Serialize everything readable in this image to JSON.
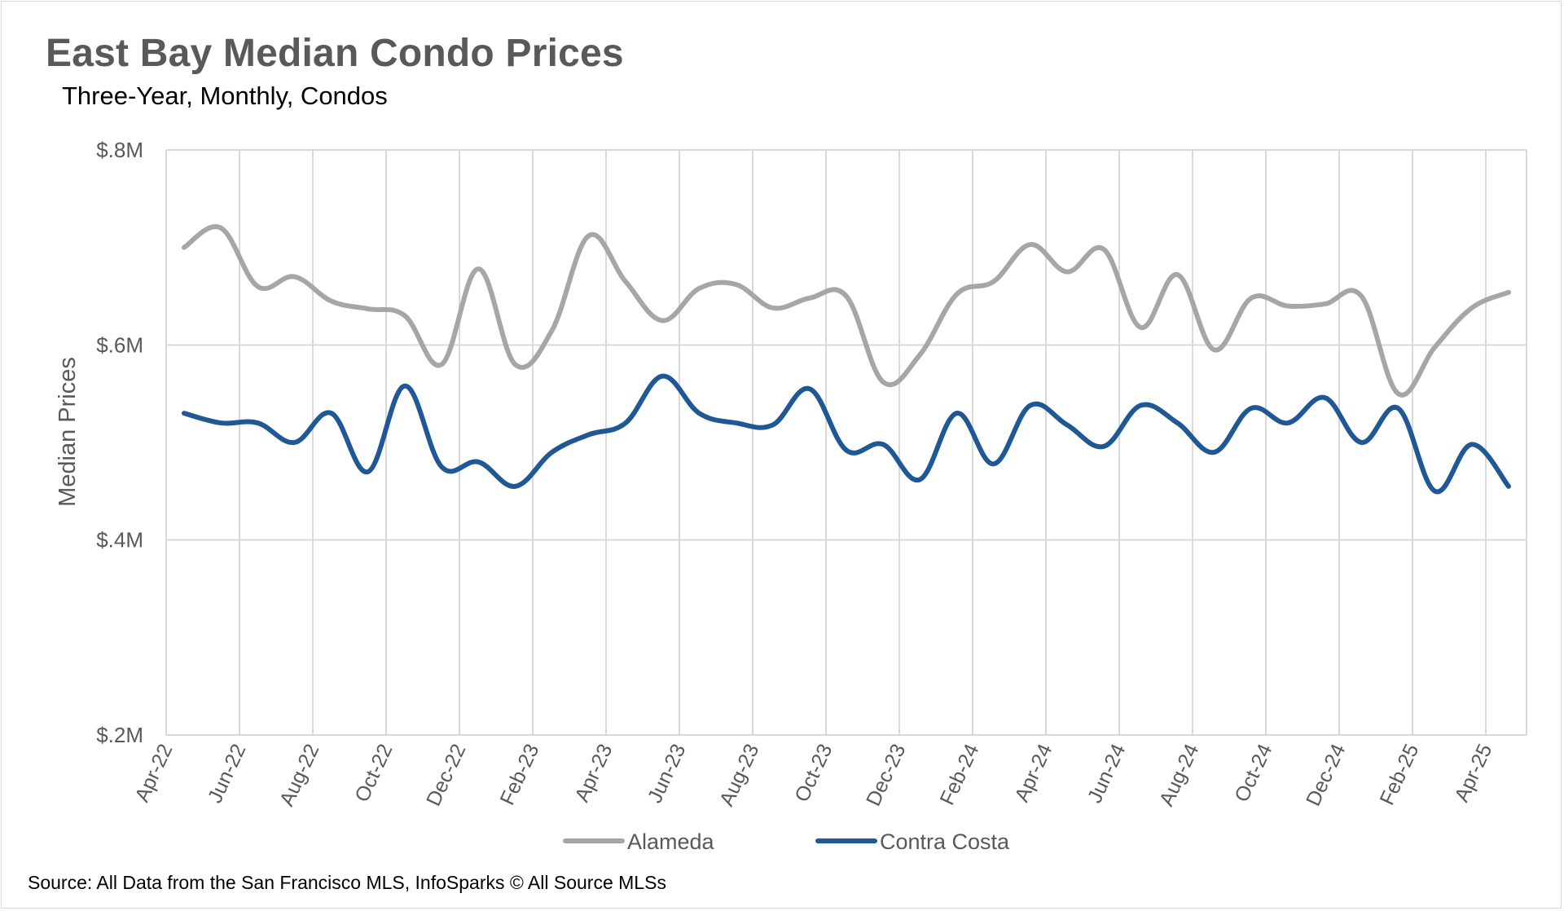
{
  "chart_data": {
    "type": "line",
    "title": "East Bay Median Condo Prices",
    "subtitle": "Three-Year, Monthly, Condos",
    "xlabel": "",
    "ylabel": "Median Prices",
    "source": "Source: All Data from the San Francisco MLS, InfoSparks © All Source MLSs",
    "ylim": [
      200000,
      800000
    ],
    "y_ticks": [
      {
        "value": 200000,
        "label": "$.2M"
      },
      {
        "value": 400000,
        "label": "$.4M"
      },
      {
        "value": 600000,
        "label": "$.6M"
      },
      {
        "value": 800000,
        "label": "$.8M"
      }
    ],
    "x": [
      "Apr-22",
      "May-22",
      "Jun-22",
      "Jul-22",
      "Aug-22",
      "Sep-22",
      "Oct-22",
      "Nov-22",
      "Dec-22",
      "Jan-23",
      "Feb-23",
      "Mar-23",
      "Apr-23",
      "May-23",
      "Jun-23",
      "Jul-23",
      "Aug-23",
      "Sep-23",
      "Oct-23",
      "Nov-23",
      "Dec-23",
      "Jan-24",
      "Feb-24",
      "Mar-24",
      "Apr-24",
      "May-24",
      "Jun-24",
      "Jul-24",
      "Aug-24",
      "Sep-24",
      "Oct-24",
      "Nov-24",
      "Dec-24",
      "Jan-25",
      "Feb-25",
      "Mar-25",
      "Apr-25"
    ],
    "x_tick_labels": [
      "Apr-22",
      "Jun-22",
      "Aug-22",
      "Oct-22",
      "Dec-22",
      "Feb-23",
      "Apr-23",
      "Jun-23",
      "Aug-23",
      "Oct-23",
      "Dec-23",
      "Feb-24",
      "Apr-24",
      "Jun-24",
      "Aug-24",
      "Oct-24",
      "Dec-24",
      "Feb-25",
      "Apr-25"
    ],
    "grid": true,
    "legend_position": "bottom",
    "series": [
      {
        "name": "Alameda",
        "color": "#a6a6a6",
        "values": [
          700000,
          720000,
          660000,
          670000,
          645000,
          637000,
          630000,
          580000,
          678000,
          580000,
          615000,
          712000,
          665000,
          625000,
          658000,
          662000,
          638000,
          648000,
          650000,
          562000,
          590000,
          652000,
          665000,
          703000,
          675000,
          698000,
          618000,
          672000,
          595000,
          648000,
          640000,
          642000,
          650000,
          550000,
          598000,
          638000,
          654000
        ]
      },
      {
        "name": "Contra Costa",
        "color": "#1f5895",
        "values": [
          530000,
          520000,
          520000,
          500000,
          530000,
          470000,
          558000,
          475000,
          480000,
          455000,
          490000,
          508000,
          520000,
          568000,
          530000,
          520000,
          518000,
          555000,
          492000,
          498000,
          462000,
          530000,
          478000,
          538000,
          518000,
          496000,
          538000,
          520000,
          490000,
          535000,
          520000,
          546000,
          500000,
          535000,
          450000,
          498000,
          455000
        ]
      }
    ]
  }
}
